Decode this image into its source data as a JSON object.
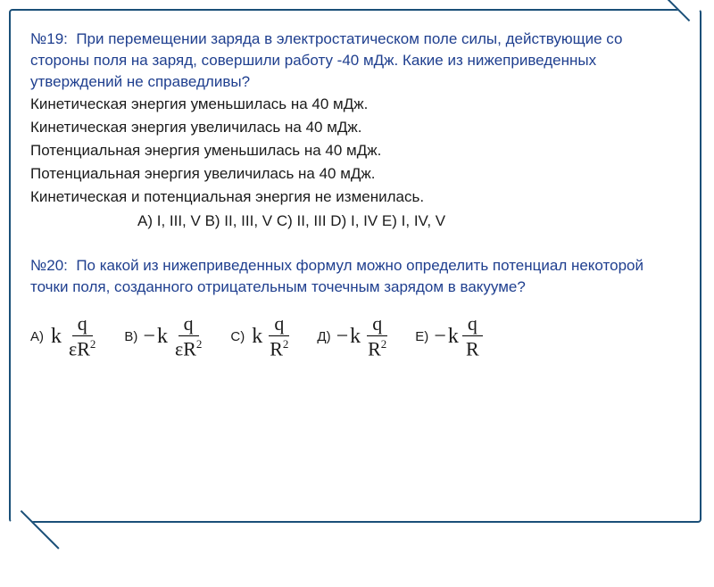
{
  "frame": {
    "border_color": "#1a4f78",
    "background": "#ffffff"
  },
  "q19": {
    "number": "№19:",
    "text": "При перемещении заряда в электростатическом поле силы, действующие со стороны поля на заряд, совершили работу -40 мДж. Какие из нижеприведенных утверждений не справедливы?",
    "statements": [
      " Кинетическая энергия уменьшилась на 40 мДж.",
      " Кинетическая энергия увеличилась на 40 мДж.",
      " Потенциальная энергия уменьшилась на 40 мДж.",
      " Потенциальная энергия увеличилась на 40 мДж.",
      " Кинетическая и потенциальная энергия не изменилась."
    ],
    "answers": "A)  I, III, V   B)  II, III, V   C)  II, III   D)  I, IV   E)  I, IV, V",
    "colors": {
      "question": "#1f3f8f",
      "statements": "#1b1b1b"
    }
  },
  "q20": {
    "number": "№20:",
    "text": "По какой из нижеприведенных формул можно определить потенциал некоторой точки поля, созданного отрицательным точечным зарядом в вакууме?",
    "options": [
      {
        "label": "A)",
        "sign": "",
        "num": "q",
        "den": "εR",
        "den_sup": "2"
      },
      {
        "label": "B)",
        "sign": "−",
        "num": "q",
        "den": "εR",
        "den_sup": "2"
      },
      {
        "label": "C)",
        "sign": "",
        "num": "q",
        "den": "R",
        "den_sup": "2"
      },
      {
        "label": "Д)",
        "sign": "−",
        "num": "q",
        "den": "R",
        "den_sup": "2"
      },
      {
        "label": "E)",
        "sign": "−",
        "num": "q",
        "den": "R",
        "den_sup": ""
      }
    ],
    "constant": "k",
    "colors": {
      "question": "#1f3f8f",
      "formula": "#000000"
    }
  }
}
